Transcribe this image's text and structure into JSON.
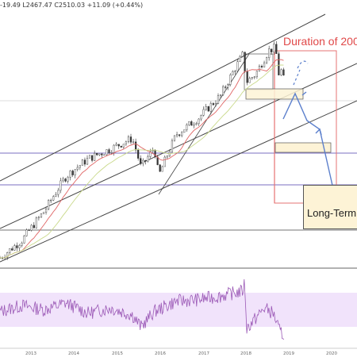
{
  "header": {
    "ohlc_text": "-19.49 L2467.47 C2510.03 +11.09 (+0.44%)"
  },
  "annotations": {
    "duration_label": "Duration of 200",
    "long_term_label": "Long-Term"
  },
  "colors": {
    "price_candles": "#333333",
    "ma_short": "#e06666",
    "ma_long": "#c9d98a",
    "channel_lines": "#444444",
    "support_lines": "#7b6fc0",
    "projection_arrows": "#5b7fcc",
    "rsi_line": "#9b59b6",
    "rsi_band": "#f1e3fb",
    "duration_box": "#e57373"
  },
  "chart_data": [
    {
      "type": "line",
      "title": "",
      "series_type": "candlestick (weekly)",
      "x": [
        2012.5,
        2013.0,
        2013.5,
        2014.0,
        2014.5,
        2015.0,
        2015.5,
        2015.7,
        2016.0,
        2016.1,
        2016.5,
        2017.0,
        2017.5,
        2018.0,
        2018.1,
        2018.3,
        2018.6,
        2018.75,
        2018.83,
        2018.92,
        2018.97
      ],
      "series": [
        {
          "values": [
            1370,
            1460,
            1620,
            1840,
            1960,
            2030,
            2110,
            1900,
            2040,
            1840,
            2140,
            2270,
            2460,
            2850,
            2590,
            2660,
            2900,
            2930,
            2650,
            2730,
            2350
          ]
        }
      ],
      "overlays": [
        "moving average (short)",
        "moving average (long)",
        "ascending channel",
        "horizontal support lines",
        "projected path arrows"
      ],
      "xlim": [
        2012.5,
        2020.6
      ],
      "x_ticks": [
        "2013",
        "2014",
        "2015",
        "2016",
        "2017",
        "2018",
        "2019",
        "2020"
      ],
      "grid": false,
      "legend": "none"
    },
    {
      "type": "line",
      "title": "",
      "indicator": "RSI",
      "band": [
        30,
        70
      ],
      "x": [
        2012.5,
        2013.0,
        2013.5,
        2014.0,
        2014.5,
        2015.0,
        2015.5,
        2015.7,
        2016.0,
        2016.5,
        2017.0,
        2017.5,
        2018.0,
        2018.05,
        2018.1,
        2018.5,
        2018.7,
        2018.85,
        2018.95
      ],
      "series": [
        {
          "values": [
            48,
            55,
            50,
            58,
            46,
            52,
            44,
            30,
            48,
            60,
            62,
            66,
            72,
            82,
            28,
            52,
            46,
            24,
            20
          ]
        }
      ],
      "ylim": [
        0,
        100
      ],
      "grid": false,
      "legend": "none"
    }
  ]
}
